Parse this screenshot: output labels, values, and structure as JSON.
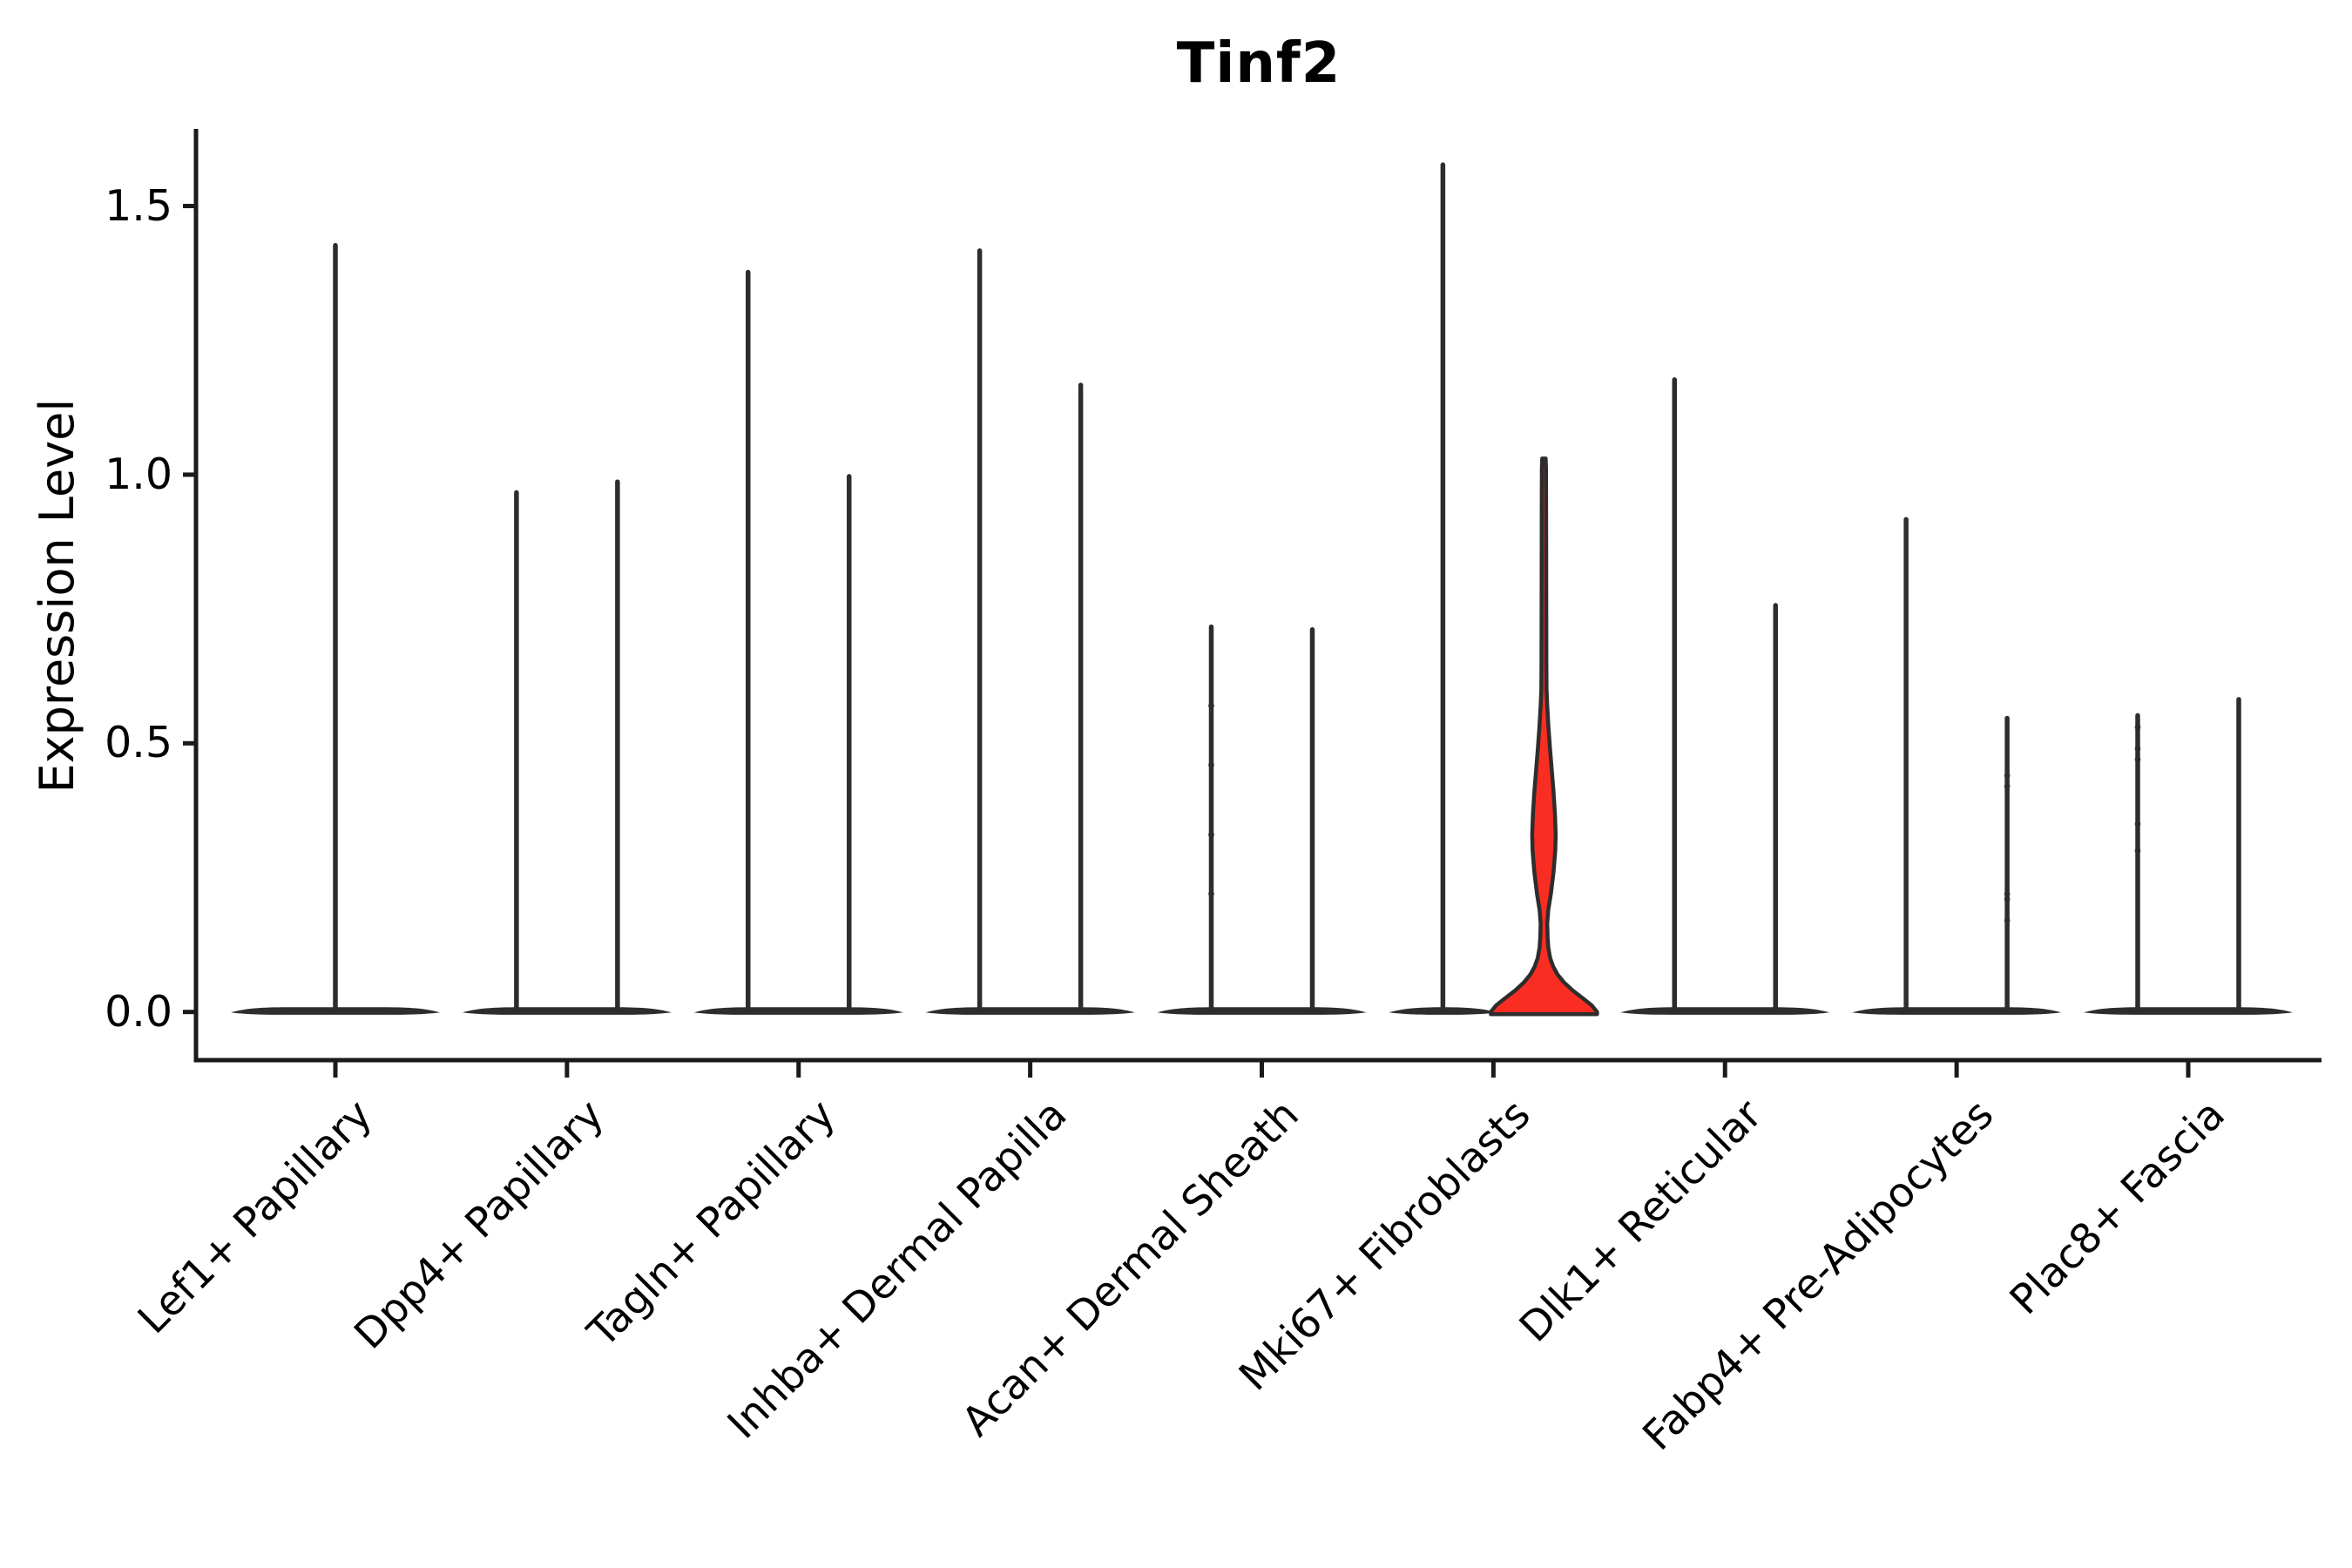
{
  "title": "Tinf2",
  "chart_data": {
    "type": "violin",
    "title": "Tinf2",
    "xlabel": "",
    "ylabel": "Expression Level",
    "ylim": [
      -0.09,
      1.64
    ],
    "y_ticks": [
      0.0,
      0.5,
      1.0,
      1.5
    ],
    "y_tick_labels": [
      "0.0",
      "0.5",
      "1.0",
      "1.5"
    ],
    "grid": false,
    "legend_position": "none",
    "outline_color": "#2d2d2d",
    "axis_color": "#1a1a1a",
    "highlight_fill_color": "#fa2d22",
    "categories": [
      "Lef1+ Papillary",
      "Dpp4+ Papillary",
      "Tagln+ Papillary",
      "Inhba+ Dermal Papilla",
      "Acan+ Dermal Sheath",
      "Mki67+ Fibroblasts",
      "Dlk1+ Reticular",
      "Fabp4+ Pre-Adipocytes",
      "Plac8+ Fascia"
    ],
    "description": "Violin plot of Tinf2 expression; most cells have zero expression so each violin is a wide flat mass at 0 with a thin spike to its maximum. Categories have two side-by-side violins except Lef1+ Papillary which has a single centered violin. The right violin of Mki67+ Fibroblasts has a visible red-filled body.",
    "violins": [
      {
        "category_index": 0,
        "position": "center",
        "max": 1.43
      },
      {
        "category_index": 1,
        "position": "left",
        "max": 0.97
      },
      {
        "category_index": 1,
        "position": "right",
        "max": 0.99
      },
      {
        "category_index": 2,
        "position": "left",
        "max": 1.38
      },
      {
        "category_index": 2,
        "position": "right",
        "max": 1.0
      },
      {
        "category_index": 3,
        "position": "left",
        "max": 1.42
      },
      {
        "category_index": 3,
        "position": "right",
        "max": 1.17
      },
      {
        "category_index": 4,
        "position": "left",
        "max": 0.72,
        "overlay_points": [
          0.57,
          0.46,
          0.33,
          0.22
        ]
      },
      {
        "category_index": 4,
        "position": "right",
        "max": 0.715
      },
      {
        "category_index": 5,
        "position": "left",
        "max": 1.58
      },
      {
        "category_index": 5,
        "position": "right",
        "max": 1.03,
        "highlighted": true,
        "fill": "#fa2d22",
        "body_profile": [
          [
            0.0,
            61.0
          ],
          [
            0.012,
            55.0
          ],
          [
            0.025,
            45.0
          ],
          [
            0.04,
            33.0
          ],
          [
            0.055,
            23.0
          ],
          [
            0.07,
            15.5
          ],
          [
            0.085,
            10.5
          ],
          [
            0.1,
            7.2
          ],
          [
            0.12,
            5.0
          ],
          [
            0.14,
            4.2
          ],
          [
            0.165,
            3.8
          ],
          [
            0.19,
            5.0
          ],
          [
            0.22,
            8.0
          ],
          [
            0.26,
            11.0
          ],
          [
            0.3,
            13.0
          ],
          [
            0.33,
            13.5
          ],
          [
            0.37,
            12.6
          ],
          [
            0.41,
            11.0
          ],
          [
            0.45,
            9.0
          ],
          [
            0.49,
            7.0
          ],
          [
            0.53,
            5.2
          ],
          [
            0.57,
            3.8
          ],
          [
            0.6,
            3.0
          ],
          [
            0.65,
            2.8
          ],
          [
            0.75,
            2.7
          ],
          [
            0.85,
            2.6
          ],
          [
            0.95,
            2.5
          ],
          [
            1.01,
            2.4
          ],
          [
            1.03,
            2.0
          ]
        ]
      },
      {
        "category_index": 6,
        "position": "left",
        "max": 1.18
      },
      {
        "category_index": 6,
        "position": "right",
        "max": 0.76
      },
      {
        "category_index": 7,
        "position": "left",
        "max": 0.92
      },
      {
        "category_index": 7,
        "position": "right",
        "max": 0.55,
        "overlay_points": [
          0.44,
          0.42,
          0.22,
          0.21,
          0.17
        ]
      },
      {
        "category_index": 8,
        "position": "left",
        "max": 0.555,
        "overlay_points": [
          0.53,
          0.49,
          0.47,
          0.35,
          0.3
        ]
      },
      {
        "category_index": 8,
        "position": "right",
        "max": 0.585
      }
    ]
  }
}
